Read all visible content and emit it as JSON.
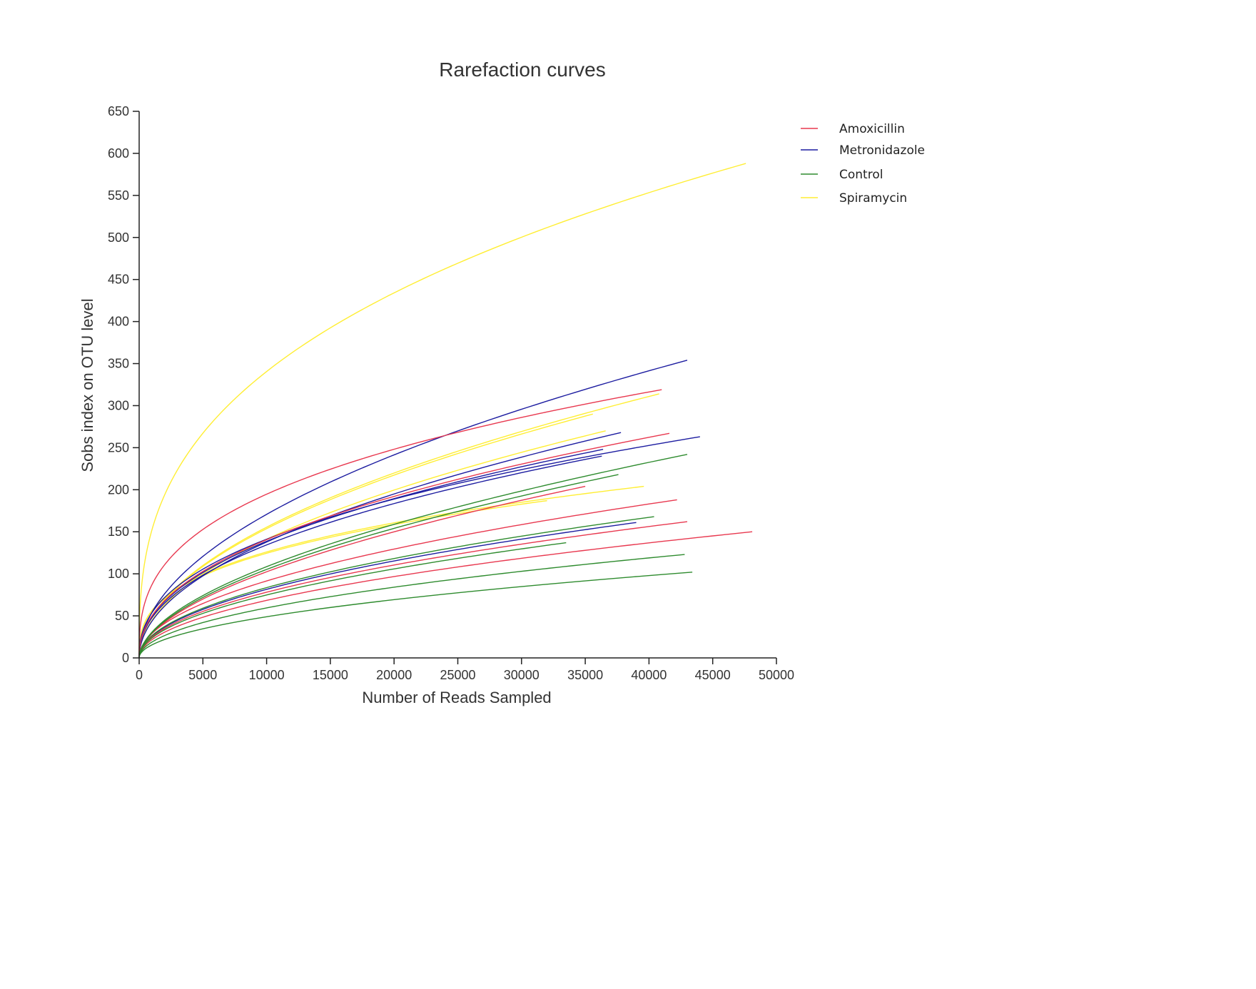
{
  "chart_data": {
    "type": "line",
    "title": "Rarefaction curves",
    "xlabel": "Number of Reads Sampled",
    "ylabel": "Sobs index on OTU level",
    "xlim": [
      0,
      50000
    ],
    "ylim": [
      0,
      650
    ],
    "xticks": [
      "0",
      "5000",
      "10000",
      "15000",
      "20000",
      "25000",
      "30000",
      "35000",
      "40000",
      "45000",
      "50000"
    ],
    "yticks": [
      "0",
      "50",
      "100",
      "150",
      "200",
      "250",
      "300",
      "350",
      "400",
      "450",
      "500",
      "550",
      "600",
      "650"
    ],
    "grid": false,
    "legend_position": "top-right",
    "groups": [
      {
        "name": "Amoxicillin",
        "color": "#e8384f"
      },
      {
        "name": "Metronidazole",
        "color": "#1c1ca0"
      },
      {
        "name": "Control",
        "color": "#2e8b2e"
      },
      {
        "name": "Spiramycin",
        "color": "#ffee33"
      }
    ],
    "series": [
      {
        "group": "Spiramycin",
        "end_x": 47600,
        "end_y": 588,
        "shape": 0.35
      },
      {
        "group": "Spiramycin",
        "end_x": 40800,
        "end_y": 314,
        "shape": 0.5
      },
      {
        "group": "Spiramycin",
        "end_x": 35600,
        "end_y": 290,
        "shape": 0.5
      },
      {
        "group": "Spiramycin",
        "end_x": 36600,
        "end_y": 270,
        "shape": 0.5
      },
      {
        "group": "Spiramycin",
        "end_x": 39600,
        "end_y": 204,
        "shape": 0.35
      },
      {
        "group": "Spiramycin",
        "end_x": 32000,
        "end_y": 187,
        "shape": 0.35
      },
      {
        "group": "Metronidazole",
        "end_x": 43000,
        "end_y": 354,
        "shape": 0.5
      },
      {
        "group": "Metronidazole",
        "end_x": 37800,
        "end_y": 268,
        "shape": 0.5
      },
      {
        "group": "Metronidazole",
        "end_x": 44000,
        "end_y": 263,
        "shape": 0.42
      },
      {
        "group": "Metronidazole",
        "end_x": 36400,
        "end_y": 248,
        "shape": 0.45
      },
      {
        "group": "Metronidazole",
        "end_x": 36300,
        "end_y": 240,
        "shape": 0.45
      },
      {
        "group": "Metronidazole",
        "end_x": 39000,
        "end_y": 161,
        "shape": 0.5
      },
      {
        "group": "Amoxicillin",
        "end_x": 41000,
        "end_y": 319,
        "shape": 0.35
      },
      {
        "group": "Amoxicillin",
        "end_x": 41600,
        "end_y": 267,
        "shape": 0.45
      },
      {
        "group": "Amoxicillin",
        "end_x": 35000,
        "end_y": 204,
        "shape": 0.55
      },
      {
        "group": "Amoxicillin",
        "end_x": 42200,
        "end_y": 188,
        "shape": 0.5
      },
      {
        "group": "Amoxicillin",
        "end_x": 43000,
        "end_y": 162,
        "shape": 0.5
      },
      {
        "group": "Amoxicillin",
        "end_x": 48100,
        "end_y": 150,
        "shape": 0.5
      },
      {
        "group": "Control",
        "end_x": 43000,
        "end_y": 242,
        "shape": 0.55
      },
      {
        "group": "Control",
        "end_x": 37600,
        "end_y": 218,
        "shape": 0.55
      },
      {
        "group": "Control",
        "end_x": 40400,
        "end_y": 168,
        "shape": 0.5
      },
      {
        "group": "Control",
        "end_x": 33500,
        "end_y": 137,
        "shape": 0.5
      },
      {
        "group": "Control",
        "end_x": 42800,
        "end_y": 123,
        "shape": 0.5
      },
      {
        "group": "Control",
        "end_x": 43400,
        "end_y": 102,
        "shape": 0.5
      }
    ]
  }
}
